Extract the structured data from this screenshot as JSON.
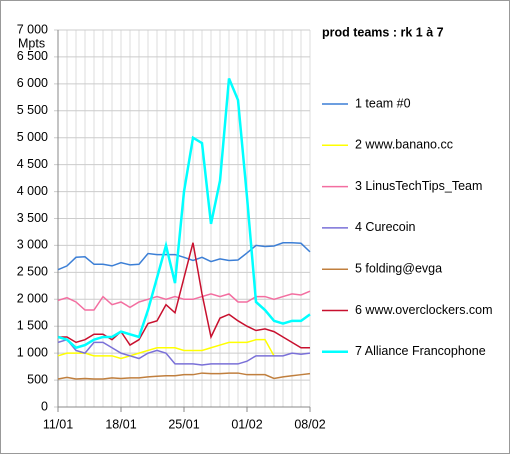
{
  "chart_data": {
    "type": "line",
    "title": "prod teams : rk 1 à 7",
    "y_label": "Mpts",
    "categories": [
      "11/01",
      null,
      null,
      null,
      null,
      null,
      null,
      "18/01",
      null,
      null,
      null,
      null,
      null,
      null,
      "25/01",
      null,
      null,
      null,
      null,
      null,
      null,
      "01/02",
      null,
      null,
      null,
      null,
      null,
      null,
      "08/02"
    ],
    "ylim": [
      0,
      7000
    ],
    "yticks": [
      0,
      500,
      {
        "value": 1000,
        "label": "1 000"
      },
      {
        "value": 1500,
        "label": "1 500"
      },
      {
        "value": 2000,
        "label": "2 000"
      },
      {
        "value": 2500,
        "label": "2 500"
      },
      {
        "value": 3000,
        "label": "3 000"
      },
      {
        "value": 3500,
        "label": "3 500"
      },
      {
        "value": 4000,
        "label": "4 000"
      },
      {
        "value": 4500,
        "label": "4 500"
      },
      {
        "value": 5000,
        "label": "5 000"
      },
      {
        "value": 5500,
        "label": "5 500"
      },
      {
        "value": 6000,
        "label": "6 000"
      },
      {
        "value": 6500,
        "label": "6 500"
      },
      {
        "value": 7000,
        "label": "7 000"
      }
    ],
    "grid": true,
    "legend": "right",
    "series": [
      {
        "name": "1 team #0",
        "color": "#3c7fd6",
        "values": [
          2550,
          2620,
          2780,
          2790,
          2650,
          2650,
          2620,
          2680,
          2640,
          2650,
          2850,
          2830,
          2830,
          2830,
          2780,
          2720,
          2780,
          2700,
          2750,
          2720,
          2730,
          2860,
          3000,
          2980,
          2990,
          3050,
          3050,
          3040,
          2880
        ]
      },
      {
        "name": "2 www.banano.cc",
        "color": "#ffff00",
        "values": [
          950,
          1000,
          1000,
          1000,
          950,
          950,
          950,
          900,
          950,
          1000,
          1050,
          1100,
          1100,
          1100,
          1050,
          1050,
          1050,
          1100,
          1150,
          1200,
          1200,
          1200,
          1250,
          1250,
          950,
          null,
          null,
          null,
          null
        ]
      },
      {
        "name": "3 LinusTechTips_Team",
        "color": "#f36ea0",
        "values": [
          1980,
          2030,
          1950,
          1800,
          1800,
          2050,
          1900,
          1950,
          1850,
          1950,
          2000,
          2050,
          2000,
          2050,
          2000,
          2000,
          2050,
          2100,
          2050,
          2100,
          1950,
          1950,
          2050,
          2050,
          2000,
          2050,
          2100,
          2080,
          2150
        ]
      },
      {
        "name": "4 Curecoin",
        "color": "#7a70d8",
        "values": [
          1200,
          1250,
          1050,
          1000,
          1200,
          1200,
          1100,
          1000,
          950,
          900,
          1000,
          1050,
          1000,
          800,
          800,
          800,
          780,
          800,
          800,
          800,
          800,
          850,
          950,
          950,
          950,
          950,
          1000,
          980,
          1000
        ]
      },
      {
        "name": "5 folding@evga",
        "color": "#c07f3e",
        "values": [
          520,
          550,
          520,
          530,
          520,
          520,
          540,
          530,
          540,
          540,
          560,
          570,
          580,
          580,
          600,
          600,
          630,
          620,
          620,
          630,
          630,
          600,
          600,
          600,
          530,
          560,
          580,
          600,
          620
        ]
      },
      {
        "name": "6 www.overclockers.com",
        "color": "#c8102e",
        "values": [
          1300,
          1300,
          1200,
          1250,
          1350,
          1350,
          1250,
          1400,
          1150,
          1250,
          1550,
          1600,
          1900,
          1750,
          2400,
          3050,
          2100,
          1300,
          1650,
          1720,
          1600,
          1500,
          1420,
          1450,
          1400,
          1300,
          1200,
          1100,
          1100
        ]
      },
      {
        "name": "7 Alliance Francophone",
        "color": "#00ffff",
        "values": [
          1300,
          1250,
          1100,
          1150,
          1250,
          1300,
          1300,
          1400,
          1350,
          1300,
          1800,
          2400,
          3000,
          2300,
          4000,
          5000,
          4900,
          3400,
          4200,
          6100,
          5700,
          3900,
          1950,
          1800,
          1600,
          1550,
          1600,
          1600,
          1720
        ]
      }
    ]
  }
}
